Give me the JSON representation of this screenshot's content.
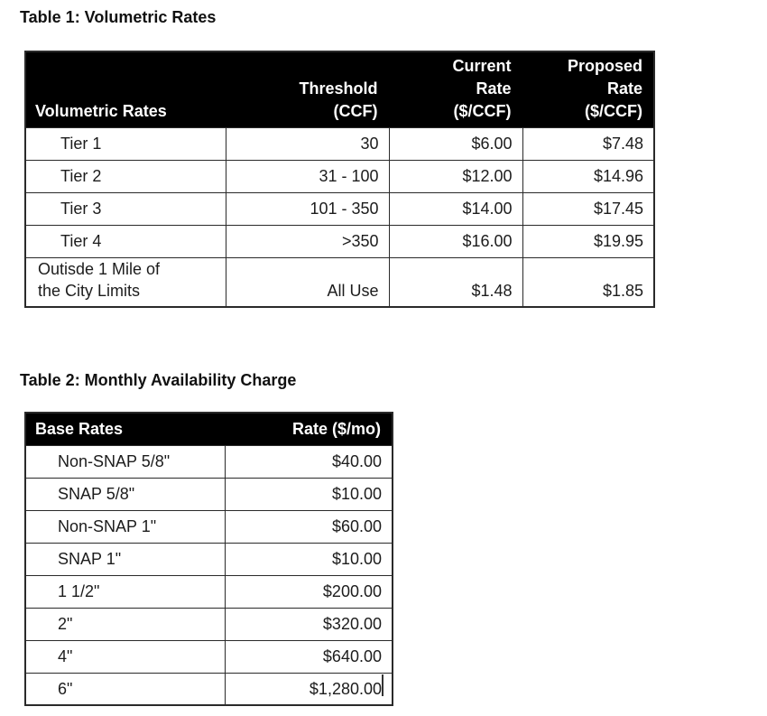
{
  "colors": {
    "header_bg": "#000000",
    "header_text": "#ffffff",
    "body_text": "#1c1c1c",
    "border": "#2a2a2a",
    "page_bg": "#ffffff"
  },
  "table1": {
    "title": "Table 1: Volumetric Rates",
    "header": [
      "Volumetric Rates",
      "Threshold\n(CCF)",
      "Current\nRate\n($/CCF)",
      "Proposed\nRate\n($/CCF)"
    ],
    "rows": [
      [
        "Tier 1",
        "30",
        "$6.00",
        "$7.48"
      ],
      [
        "Tier 2",
        "31 - 100",
        "$12.00",
        "$14.96"
      ],
      [
        "Tier 3",
        "101 - 350",
        "$14.00",
        "$17.45"
      ],
      [
        "Tier 4",
        ">350",
        "$16.00",
        "$19.95"
      ],
      [
        "Outisde 1 Mile of\nthe City Limits",
        "All Use",
        "$1.48",
        "$1.85"
      ]
    ]
  },
  "table2": {
    "title": "Table 2: Monthly Availability Charge",
    "header": [
      "Base Rates",
      "Rate ($/mo)"
    ],
    "rows": [
      [
        "Non-SNAP 5/8\"",
        "$40.00"
      ],
      [
        "SNAP 5/8\"",
        "$10.00"
      ],
      [
        "Non-SNAP 1\"",
        "$60.00"
      ],
      [
        "SNAP 1\"",
        "$10.00"
      ],
      [
        "1 1/2\"",
        "$200.00"
      ],
      [
        "2\"",
        "$320.00"
      ],
      [
        "4\"",
        "$640.00"
      ],
      [
        "6\"",
        "$1,280.00"
      ]
    ]
  }
}
